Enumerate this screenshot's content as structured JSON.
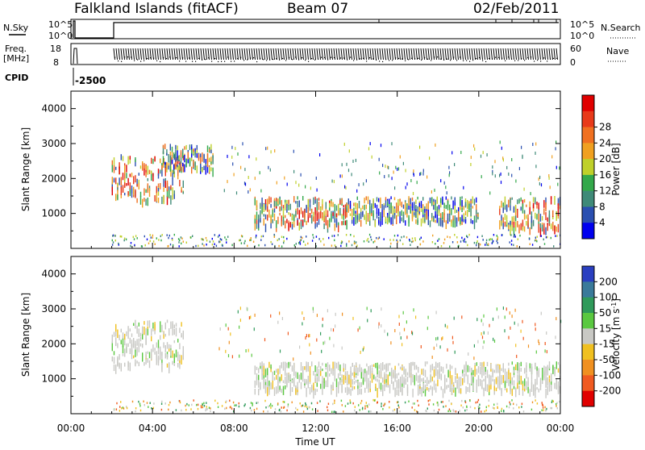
{
  "header": {
    "title": "Falkland Islands (fitACF)",
    "beam": "Beam 07",
    "date": "02/Feb/2011"
  },
  "status_panels": {
    "nsky_label": "N.Sky",
    "nsky_ticks": [
      "10^5",
      "10^0"
    ],
    "nsearch_label": "N.Search",
    "nsearch_ticks": [
      "10^5",
      "10^0"
    ],
    "freq_label_1": "Freq.",
    "freq_label_2": "[MHz]",
    "freq_ticks": [
      "18",
      "8"
    ],
    "nave_label": "Nave",
    "nave_ticks": [
      "60",
      "0"
    ],
    "cpid_label": "CPID",
    "cpid_value": "-2500"
  },
  "chart_data": [
    {
      "type": "heatmap",
      "parameter": "power",
      "ylabel": "Slant Range [km]",
      "yticks": [
        "1000",
        "2000",
        "3000",
        "4000"
      ],
      "ylim": [
        0,
        4500
      ],
      "colorbar": {
        "label": "Power [dB]",
        "ticks": [
          "4",
          "8",
          "12",
          "16",
          "20",
          "24",
          "28"
        ],
        "colors": [
          "#0000ee",
          "#2a4fb0",
          "#3f8a78",
          "#33a84a",
          "#bfd02a",
          "#f0a020",
          "#f07020",
          "#e83a1a",
          "#e00000"
        ]
      },
      "echo_regions": [
        {
          "x": [
            2.0,
            5.5
          ],
          "range": [
            1400,
            2700
          ],
          "level": "high"
        },
        {
          "x": [
            4.5,
            7.0
          ],
          "range": [
            2300,
            3000
          ],
          "level": "mid"
        },
        {
          "x": [
            9.0,
            13.5
          ],
          "range": [
            700,
            1500
          ],
          "level": "high"
        },
        {
          "x": [
            13.5,
            20.0
          ],
          "range": [
            800,
            1500
          ],
          "level": "mid"
        },
        {
          "x": [
            21.0,
            24.0
          ],
          "range": [
            600,
            1500
          ],
          "level": "high"
        }
      ]
    },
    {
      "type": "heatmap",
      "parameter": "velocity",
      "ylabel": "Slant Range [km]",
      "yticks": [
        "1000",
        "2000",
        "3000",
        "4000"
      ],
      "ylim": [
        0,
        4500
      ],
      "colorbar": {
        "label": "Velocity [m s^-1]",
        "ticks": [
          "200",
          "100",
          "50",
          "15",
          "-15",
          "-50",
          "-100",
          "-200"
        ],
        "colors": [
          "#2a3fc0",
          "#3a7a9a",
          "#2f9a5a",
          "#5ac840",
          "#c8c8c4",
          "#f0c020",
          "#f09020",
          "#f05a20",
          "#e00000"
        ]
      },
      "echo_regions": [
        {
          "x": [
            2.0,
            5.5
          ],
          "range": [
            1400,
            2700
          ],
          "level": "ground"
        },
        {
          "x": [
            9.0,
            24.0
          ],
          "range": [
            700,
            1500
          ],
          "level": "ground"
        }
      ]
    }
  ],
  "time_axis": {
    "xlabel": "Time UT",
    "ticks": [
      "00:00",
      "04:00",
      "08:00",
      "12:00",
      "16:00",
      "20:00",
      "00:00"
    ],
    "xlim": [
      0,
      24
    ]
  }
}
